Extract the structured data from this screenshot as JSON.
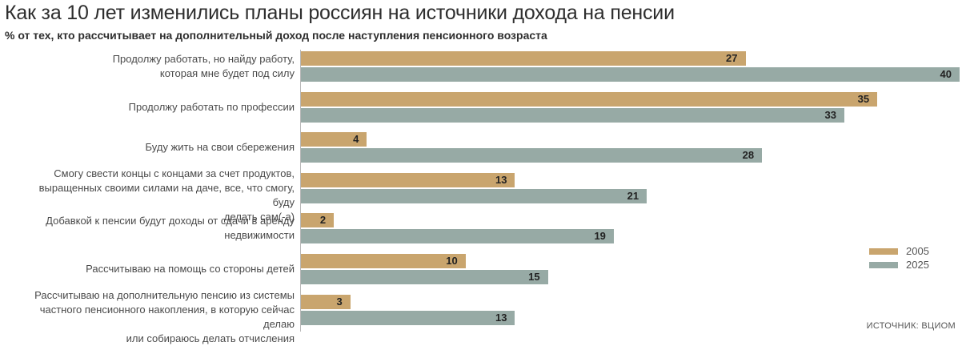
{
  "chart_data": {
    "type": "bar",
    "orientation": "horizontal",
    "title": "Как за 10 лет изменились планы россиян на источники дохода на пенсии",
    "subtitle": "% от тех, кто рассчитывает на дополнительный доход после наступления пенсионного возраста",
    "categories": [
      "Продолжу работать, но найду работу, которая мне будет под силу",
      "Продолжу работать по профессии",
      "Буду жить на свои сбережения",
      "Смогу свести концы с концами за счет продуктов, выращенных своими силами на даче, все, что смогу, буду делать сам(-а)",
      "Добавкой к пенсии будут доходы от сдачи в аренду недвижимости",
      "Рассчитываю на помощь со стороны детей",
      "Рассчитываю на дополнительную пенсию из системы частного пенсионного накопления, в которую сейчас делаю или собираюсь делать отчисления"
    ],
    "category_lines": [
      [
        "Продолжу работать, но найду работу,",
        "которая мне будет под силу"
      ],
      [
        "Продолжу работать по профессии"
      ],
      [
        "Буду жить на свои сбережения"
      ],
      [
        "Смогу свести концы с концами за счет продуктов,",
        "выращенных своими силами на даче, все, что смогу, буду",
        "делать сам(-а)"
      ],
      [
        "Добавкой к пенсии будут доходы от сдачи в аренду",
        "недвижимости"
      ],
      [
        "Рассчитываю на помощь со стороны детей"
      ],
      [
        "Рассчитываю на дополнительную пенсию из системы",
        "частного пенсионного накопления, в которую сейчас делаю",
        "или собираюсь делать отчисления"
      ]
    ],
    "series": [
      {
        "name": "2005",
        "color": "#c9a56e",
        "values": [
          27,
          35,
          4,
          13,
          2,
          10,
          3
        ]
      },
      {
        "name": "2025",
        "color": "#97aaa5",
        "values": [
          40,
          33,
          28,
          21,
          19,
          15,
          13
        ]
      }
    ],
    "xlim": [
      0,
      40
    ],
    "grid": false,
    "legend_position": "bottom-right"
  },
  "source": "ИСТОЧНИК: ВЦИОМ"
}
